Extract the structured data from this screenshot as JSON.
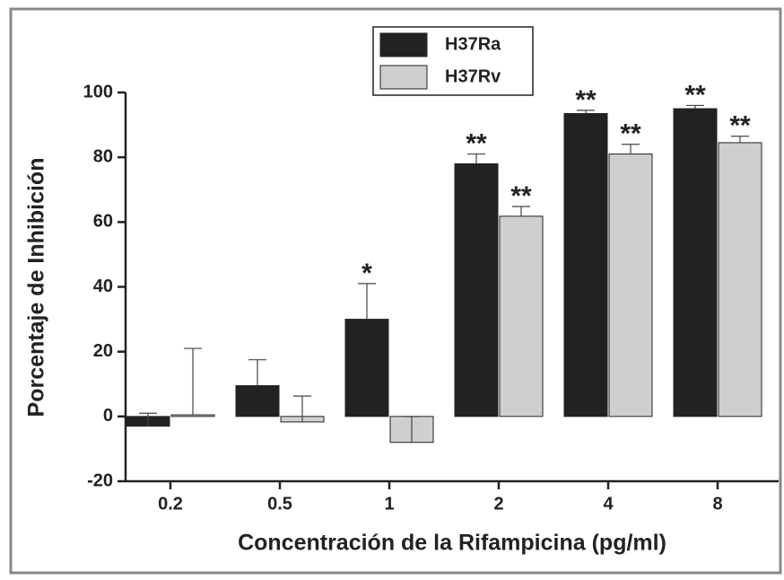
{
  "chart_data": {
    "type": "bar",
    "x_label": "Concentración de la Rifampicina (pg/ml)",
    "y_label": "Porcentaje de Inhibición",
    "categories": [
      "0.2",
      "0.5",
      "1",
      "2",
      "4",
      "8"
    ],
    "series": [
      {
        "name": "H37Ra",
        "color": "#222222",
        "values": [
          -3,
          9.5,
          30,
          78,
          93.5,
          95
        ],
        "errors": [
          4,
          8,
          11,
          3,
          1,
          1
        ],
        "annotations": [
          null,
          null,
          "*",
          "**",
          "**",
          "**"
        ]
      },
      {
        "name": "H37Rv",
        "color": "#cfcfcf",
        "values": [
          0.5,
          -1.7,
          -8,
          61.8,
          81,
          84.5
        ],
        "errors": [
          20.5,
          8,
          8,
          3,
          3,
          2
        ],
        "annotations": [
          null,
          null,
          null,
          "**",
          "**",
          "**"
        ]
      }
    ],
    "ylim": [
      -20,
      100
    ],
    "yticks": [
      -20,
      0,
      20,
      40,
      60,
      80,
      100
    ]
  }
}
